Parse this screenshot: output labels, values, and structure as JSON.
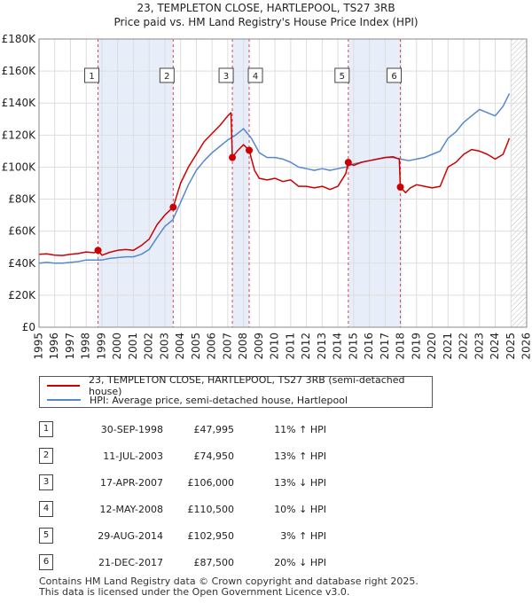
{
  "chart_data": {
    "type": "line",
    "title": "23, TEMPLETON CLOSE, HARTLEPOOL, TS27 3RB",
    "subtitle": "Price paid vs. HM Land Registry's House Price Index (HPI)",
    "xlim": [
      1995,
      2026
    ],
    "ylim": [
      0,
      180000
    ],
    "x_ticks": [
      "1995",
      "1996",
      "1997",
      "1998",
      "1999",
      "2000",
      "2001",
      "2002",
      "2003",
      "2004",
      "2005",
      "2006",
      "2007",
      "2008",
      "2009",
      "2010",
      "2011",
      "2012",
      "2013",
      "2014",
      "2015",
      "2016",
      "2017",
      "2018",
      "2019",
      "2020",
      "2021",
      "2022",
      "2023",
      "2024",
      "2025",
      "2026"
    ],
    "y_ticks": [
      {
        "value": 0,
        "label": "£0"
      },
      {
        "value": 20000,
        "label": "£20K"
      },
      {
        "value": 40000,
        "label": "£40K"
      },
      {
        "value": 60000,
        "label": "£60K"
      },
      {
        "value": 80000,
        "label": "£80K"
      },
      {
        "value": 100000,
        "label": "£100K"
      },
      {
        "value": 120000,
        "label": "£120K"
      },
      {
        "value": 140000,
        "label": "£140K"
      },
      {
        "value": 160000,
        "label": "£160K"
      },
      {
        "value": 180000,
        "label": "£180K"
      }
    ],
    "shaded_spans": [
      [
        1998.75,
        2003.53
      ],
      [
        2007.29,
        2008.36
      ],
      [
        2014.66,
        2017.97
      ]
    ],
    "future_hatch_from": 2025.0,
    "series": [
      {
        "name": "23, TEMPLETON CLOSE, HARTLEPOOL, TS27 3RB (semi-detached house)",
        "color": "#cc0000",
        "x": [
          1995.0,
          1995.5,
          1996.0,
          1996.5,
          1997.0,
          1997.5,
          1998.0,
          1998.5,
          1998.75,
          1999.0,
          1999.5,
          2000.0,
          2000.5,
          2001.0,
          2001.5,
          2002.0,
          2002.5,
          2003.0,
          2003.53,
          2004.0,
          2004.5,
          2005.0,
          2005.5,
          2006.0,
          2006.5,
          2007.0,
          2007.2,
          2007.29,
          2007.6,
          2008.0,
          2008.36,
          2008.7,
          2009.0,
          2009.5,
          2010.0,
          2010.5,
          2011.0,
          2011.5,
          2012.0,
          2012.5,
          2013.0,
          2013.5,
          2014.0,
          2014.5,
          2014.66,
          2015.0,
          2015.5,
          2016.0,
          2016.5,
          2017.0,
          2017.5,
          2017.9,
          2017.97,
          2018.3,
          2018.6,
          2019.0,
          2019.5,
          2020.0,
          2020.5,
          2021.0,
          2021.5,
          2022.0,
          2022.5,
          2023.0,
          2023.5,
          2024.0,
          2024.5,
          2024.9
        ],
        "y": [
          45500,
          45800,
          45000,
          44800,
          45500,
          46000,
          47000,
          46500,
          47995,
          45000,
          46800,
          48000,
          48500,
          48000,
          51000,
          55000,
          64000,
          70000,
          74950,
          90000,
          100000,
          108000,
          116000,
          121000,
          126000,
          132000,
          134000,
          106000,
          110000,
          114000,
          110500,
          98000,
          93000,
          92000,
          93000,
          91000,
          92000,
          88000,
          88000,
          87000,
          88000,
          86000,
          88000,
          96000,
          102950,
          101000,
          103000,
          104000,
          105000,
          106000,
          106500,
          105000,
          87500,
          84000,
          87000,
          89000,
          88000,
          87000,
          88000,
          100000,
          103000,
          108000,
          111000,
          110000,
          108000,
          105000,
          108000,
          118000
        ]
      },
      {
        "name": "HPI: Average price, semi-detached house, Hartlepool",
        "color": "#5588cc",
        "x": [
          1995.0,
          1995.5,
          1996.0,
          1996.5,
          1997.0,
          1997.5,
          1998.0,
          1998.5,
          1999.0,
          1999.5,
          2000.0,
          2000.5,
          2001.0,
          2001.5,
          2002.0,
          2002.5,
          2003.0,
          2003.5,
          2004.0,
          2004.5,
          2005.0,
          2005.5,
          2006.0,
          2006.5,
          2007.0,
          2007.5,
          2008.0,
          2008.5,
          2009.0,
          2009.5,
          2010.0,
          2010.5,
          2011.0,
          2011.5,
          2012.0,
          2012.5,
          2013.0,
          2013.5,
          2014.0,
          2014.5,
          2015.0,
          2015.5,
          2016.0,
          2016.5,
          2017.0,
          2017.5,
          2018.0,
          2018.5,
          2019.0,
          2019.5,
          2020.0,
          2020.5,
          2021.0,
          2021.5,
          2022.0,
          2022.5,
          2023.0,
          2023.5,
          2024.0,
          2024.5,
          2024.9
        ],
        "y": [
          40000,
          40500,
          40000,
          40000,
          40500,
          41000,
          42000,
          42000,
          42000,
          43000,
          43500,
          44000,
          44000,
          45500,
          48500,
          56000,
          63000,
          67000,
          78000,
          89000,
          98000,
          104000,
          109000,
          113000,
          117000,
          120000,
          124000,
          118000,
          109000,
          106000,
          106000,
          105000,
          103000,
          100000,
          99000,
          98000,
          99000,
          98000,
          99000,
          100000,
          102000,
          103000,
          104000,
          105000,
          106000,
          106000,
          105000,
          104000,
          105000,
          106000,
          108000,
          110000,
          118000,
          122000,
          128000,
          132000,
          136000,
          134000,
          132000,
          138000,
          146000
        ]
      }
    ],
    "markers": [
      {
        "id": "1",
        "x": 1998.75,
        "y": 47995
      },
      {
        "id": "2",
        "x": 2003.53,
        "y": 74950
      },
      {
        "id": "3",
        "x": 2007.29,
        "y": 106000
      },
      {
        "id": "4",
        "x": 2008.36,
        "y": 110500
      },
      {
        "id": "5",
        "x": 2014.66,
        "y": 102950
      },
      {
        "id": "6",
        "x": 2017.97,
        "y": 87500
      }
    ]
  },
  "legend": {
    "property_label": "23, TEMPLETON CLOSE, HARTLEPOOL, TS27 3RB (semi-detached house)",
    "hpi_label": "HPI: Average price, semi-detached house, Hartlepool"
  },
  "sales": [
    {
      "num": "1",
      "date": "30-SEP-1998",
      "price": "£47,995",
      "hpi": "11% ↑ HPI"
    },
    {
      "num": "2",
      "date": "11-JUL-2003",
      "price": "£74,950",
      "hpi": "13% ↑ HPI"
    },
    {
      "num": "3",
      "date": "17-APR-2007",
      "price": "£106,000",
      "hpi": "13% ↓ HPI"
    },
    {
      "num": "4",
      "date": "12-MAY-2008",
      "price": "£110,500",
      "hpi": "10% ↓ HPI"
    },
    {
      "num": "5",
      "date": "29-AUG-2014",
      "price": "£102,950",
      "hpi": "3% ↑ HPI"
    },
    {
      "num": "6",
      "date": "21-DEC-2017",
      "price": "£87,500",
      "hpi": "20% ↓ HPI"
    }
  ],
  "footer": {
    "line1": "Contains HM Land Registry data © Crown copyright and database right 2025.",
    "line2": "This data is licensed under the Open Government Licence v3.0."
  }
}
